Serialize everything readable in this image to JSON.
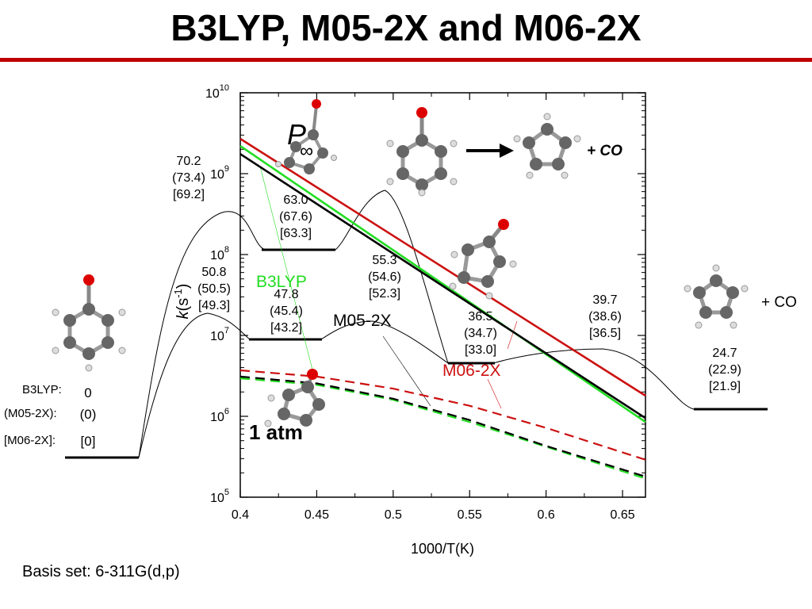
{
  "slide": {
    "title": "B3LYP, M05-2X and M06-2X",
    "footer": "Basis set: 6-311G(d,p)"
  },
  "colors": {
    "rule": "#c00000",
    "b3lyp": "#22dd22",
    "m052x": "#000000",
    "m062x": "#cc1111"
  },
  "chart_data": {
    "type": "line",
    "xlabel": "1000/T(K)",
    "ylabel": "k(s-1)",
    "xlim": [
      0.4,
      0.665
    ],
    "ylim": [
      100000,
      10000000000
    ],
    "y_scale": "log",
    "x_ticks": [
      "0.4",
      "0.45",
      "0.5",
      "0.55",
      "0.6",
      "0.65"
    ],
    "y_ticks": [
      {
        "base": "10",
        "exp": "5"
      },
      {
        "base": "10",
        "exp": "6"
      },
      {
        "base": "10",
        "exp": "7"
      },
      {
        "base": "10",
        "exp": "8"
      },
      {
        "base": "10",
        "exp": "9"
      },
      {
        "base": "10",
        "exp": "10"
      }
    ],
    "series": [
      {
        "name": "M06-2X",
        "condition": "high-pressure",
        "color": "#cc1111",
        "style": "solid",
        "x": [
          0.4,
          0.665
        ],
        "y": [
          2700000000,
          1800000
        ]
      },
      {
        "name": "B3LYP",
        "condition": "high-pressure",
        "color": "#22dd22",
        "style": "solid",
        "x": [
          0.4,
          0.665
        ],
        "y": [
          2200000000,
          850000
        ]
      },
      {
        "name": "M05-2X",
        "condition": "high-pressure",
        "color": "#000000",
        "style": "solid",
        "x": [
          0.4,
          0.665
        ],
        "y": [
          1750000000,
          950000
        ]
      },
      {
        "name": "M06-2X",
        "condition": "1 atm",
        "color": "#cc1111",
        "style": "dashed",
        "x": [
          0.4,
          0.45,
          0.5,
          0.55,
          0.6,
          0.665
        ],
        "y": [
          3700000,
          3100000,
          2200000,
          1350000,
          720000,
          290000
        ]
      },
      {
        "name": "B3LYP",
        "condition": "1 atm",
        "color": "#22dd22",
        "style": "dashed",
        "x": [
          0.4,
          0.45,
          0.5,
          0.55,
          0.6,
          0.665
        ],
        "y": [
          2950000,
          2450000,
          1600000,
          850000,
          420000,
          170000
        ]
      },
      {
        "name": "M05-2X",
        "condition": "1 atm",
        "color": "#000000",
        "style": "dashed",
        "x": [
          0.4,
          0.45,
          0.5,
          0.55,
          0.6,
          0.665
        ],
        "y": [
          3100000,
          2550000,
          1650000,
          900000,
          430000,
          180000
        ]
      }
    ],
    "annotations": {
      "p_inf_main": "P",
      "p_inf_sub": "∞",
      "one_atm": "1 atm",
      "label_b3lyp": "B3LYP",
      "label_m052x": "M05-2X",
      "label_m062x": "M06-2X",
      "plus_co_top": "+ CO",
      "plus_co_right": "+ CO"
    },
    "energy_diagram": {
      "reactant_labels": [
        "B3LYP:",
        "(M05-2X):",
        "[M06-2X]:"
      ],
      "reactant_values": [
        "0",
        "(0)",
        "[0]"
      ],
      "levels": [
        {
          "lines": [
            "70.2",
            "(73.4)",
            "[69.2]"
          ]
        },
        {
          "lines": [
            "63.0",
            "(67.6)",
            "[63.3]"
          ]
        },
        {
          "lines": [
            "50.8",
            "(50.5)",
            "[49.3]"
          ]
        },
        {
          "lines": [
            "47.8",
            "(45.4)",
            "[43.2]"
          ]
        },
        {
          "lines": [
            "55.3",
            "(54.6)",
            "[52.3]"
          ]
        },
        {
          "lines": [
            "36.5",
            "(34.7)",
            "[33.0]"
          ]
        },
        {
          "lines": [
            "39.7",
            "(38.6)",
            "[36.5]"
          ]
        },
        {
          "lines": [
            "24.7",
            "(22.9)",
            "[21.9]"
          ]
        }
      ]
    }
  }
}
